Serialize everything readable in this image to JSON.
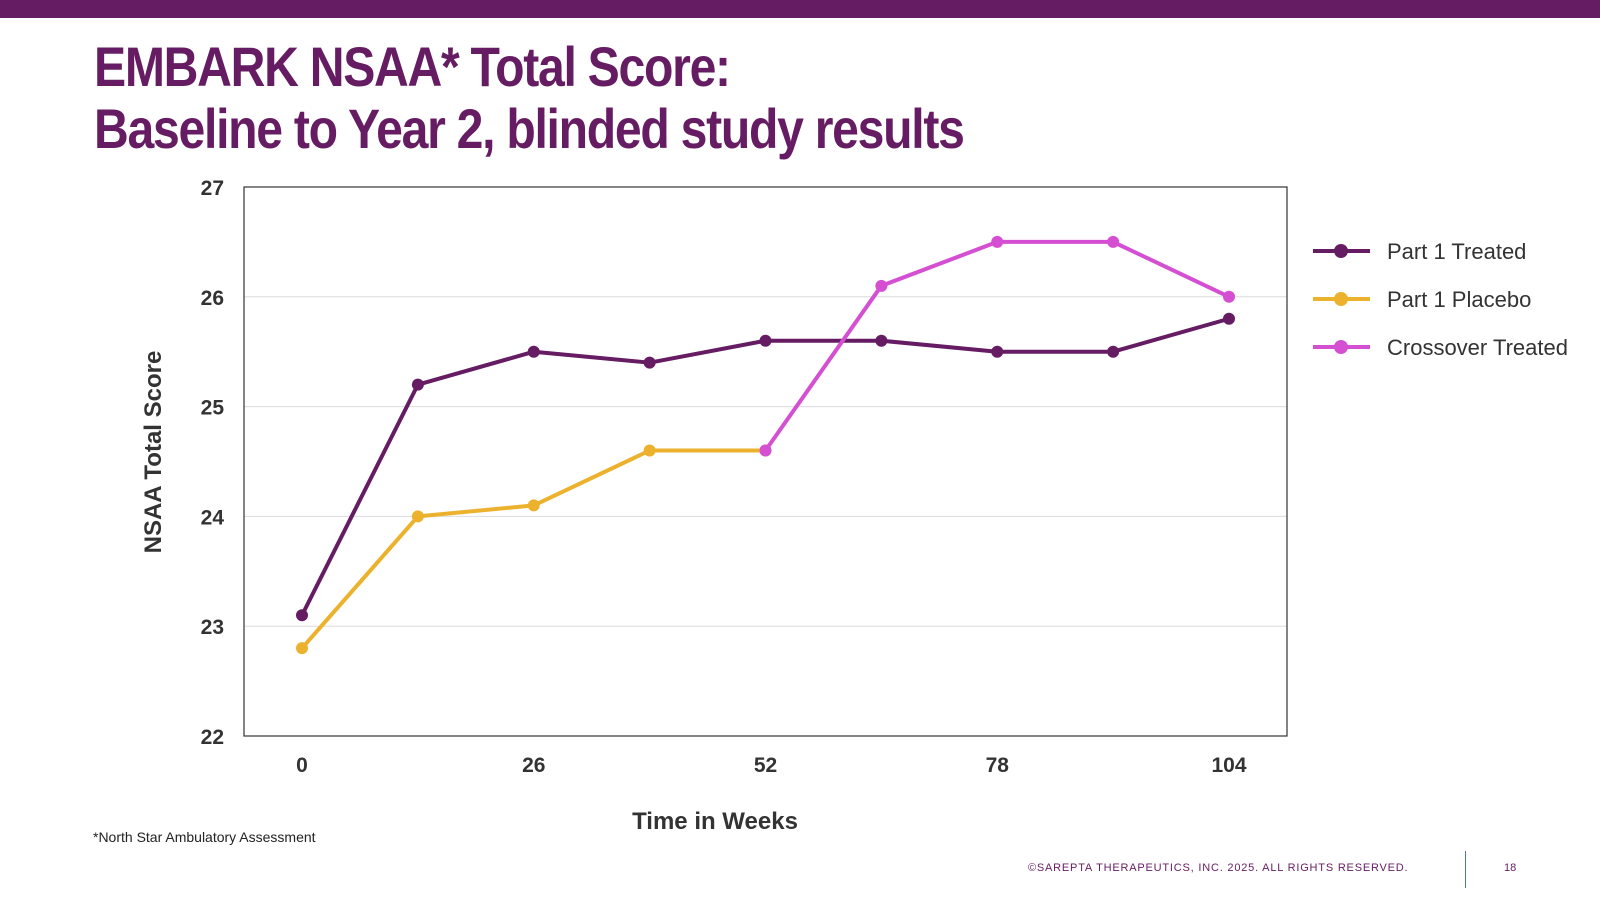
{
  "slide": {
    "title_line1": "EMBARK NSAA* Total Score:",
    "title_line2": "Baseline to Year 2, blinded study results",
    "footnote": "*North Star Ambulatory Assessment",
    "copyright": "©SAREPTA THERAPEUTICS, INC. 2025.  ALL RIGHTS RESERVED.",
    "page_number": "18",
    "brand_color": "#651c62"
  },
  "chart_data": {
    "type": "line",
    "xlabel": "Time in Weeks",
    "ylabel": "NSAA Total Score",
    "xlim": [
      0,
      104
    ],
    "ylim": [
      22,
      27
    ],
    "x_ticks": [
      0,
      26,
      52,
      78,
      104
    ],
    "y_ticks": [
      22,
      23,
      24,
      25,
      26,
      27
    ],
    "grid": "horizontal",
    "legend_position": "right",
    "series": [
      {
        "name": "Part 1 Treated",
        "color": "#651c62",
        "points": [
          [
            0,
            23.1
          ],
          [
            13,
            25.2
          ],
          [
            26,
            25.5
          ],
          [
            39,
            25.4
          ],
          [
            52,
            25.6
          ],
          [
            65,
            25.6
          ],
          [
            78,
            25.5
          ],
          [
            91,
            25.5
          ],
          [
            104,
            25.8
          ]
        ]
      },
      {
        "name": "Part 1 Placebo",
        "color": "#ecb22e",
        "points": [
          [
            0,
            22.8
          ],
          [
            13,
            24.0
          ],
          [
            26,
            24.1
          ],
          [
            39,
            24.6
          ],
          [
            52,
            24.6
          ]
        ]
      },
      {
        "name": "Crossover Treated",
        "color": "#d44fd2",
        "points": [
          [
            52,
            24.6
          ],
          [
            65,
            26.1
          ],
          [
            78,
            26.5
          ],
          [
            91,
            26.5
          ],
          [
            104,
            26.0
          ]
        ]
      }
    ]
  }
}
